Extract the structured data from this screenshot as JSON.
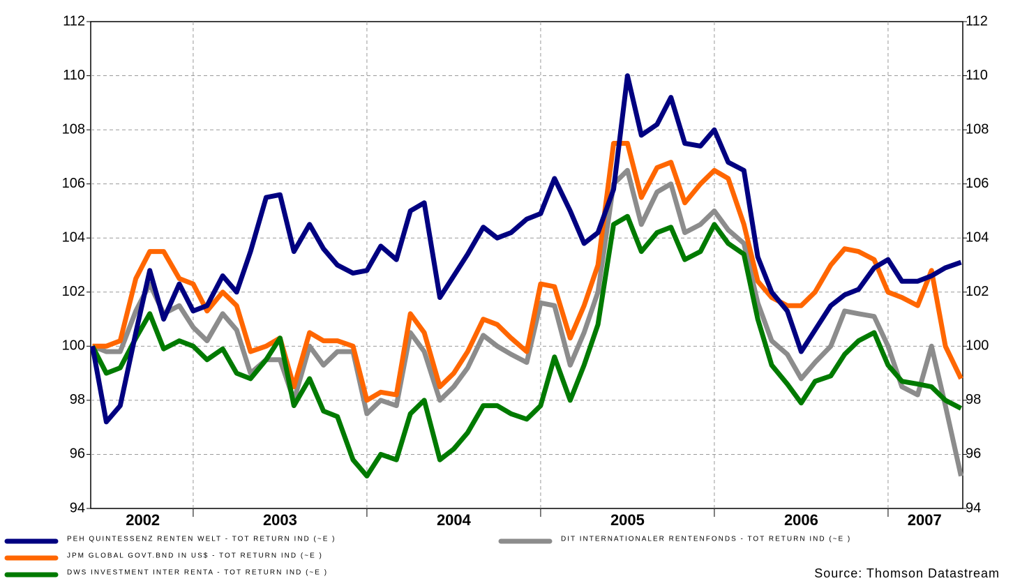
{
  "chart_data": {
    "type": "line",
    "source": "Source: Thomson Datastream",
    "x": [
      2002.42,
      2002.5,
      2002.58,
      2002.67,
      2002.75,
      2002.83,
      2002.92,
      2003,
      2003.08,
      2003.17,
      2003.25,
      2003.33,
      2003.42,
      2003.5,
      2003.58,
      2003.67,
      2003.75,
      2003.83,
      2003.92,
      2004,
      2004.08,
      2004.17,
      2004.25,
      2004.33,
      2004.42,
      2004.5,
      2004.58,
      2004.67,
      2004.75,
      2004.83,
      2004.92,
      2005,
      2005.08,
      2005.17,
      2005.25,
      2005.33,
      2005.42,
      2005.5,
      2005.58,
      2005.67,
      2005.75,
      2005.83,
      2005.92,
      2006,
      2006.08,
      2006.17,
      2006.25,
      2006.33,
      2006.42,
      2006.5,
      2006.58,
      2006.67,
      2006.75,
      2006.83,
      2006.92,
      2007,
      2007.08,
      2007.17,
      2007.25,
      2007.33,
      2007.42
    ],
    "series": [
      {
        "name": "PEH QUINTESSENZ RENTEN WELT - TOT RETURN IND (~E )",
        "color": "#000080",
        "values": [
          100,
          97.2,
          97.8,
          100.5,
          102.8,
          101,
          102.3,
          101.3,
          101.5,
          102.6,
          102,
          103.5,
          105.5,
          105.6,
          103.5,
          104.5,
          103.6,
          103,
          102.7,
          102.8,
          103.7,
          103.2,
          105,
          105.3,
          101.8,
          102.6,
          103.4,
          104.4,
          104,
          104.2,
          104.7,
          104.9,
          106.2,
          105,
          103.8,
          104.2,
          105.8,
          110,
          107.8,
          108.2,
          109.2,
          107.5,
          107.4,
          108,
          106.8,
          106.5,
          103.3,
          102,
          101.3,
          99.8,
          100.6,
          101.5,
          101.9,
          102.1,
          102.9,
          103.2,
          102.4,
          102.4,
          102.6,
          102.9,
          103.1
        ]
      },
      {
        "name": "JPM GLOBAL GOVT.BND IN US$ - TOT RETURN IND (~E )",
        "color": "#ff6600",
        "values": [
          100,
          100,
          100.2,
          102.5,
          103.5,
          103.5,
          102.5,
          102.3,
          101.3,
          102,
          101.5,
          99.8,
          100,
          100.3,
          98.5,
          100.5,
          100.2,
          100.2,
          100,
          98,
          98.3,
          98.2,
          101.2,
          100.5,
          98.5,
          99,
          99.8,
          101,
          100.8,
          100.3,
          99.8,
          102.3,
          102.2,
          100.3,
          101.5,
          103,
          107.5,
          107.5,
          105.5,
          106.6,
          106.8,
          105.3,
          106,
          106.5,
          106.2,
          104.5,
          102.4,
          101.8,
          101.5,
          101.5,
          102,
          103,
          103.6,
          103.5,
          103.2,
          102,
          101.8,
          101.5,
          102.8,
          100,
          98.8
        ]
      },
      {
        "name": "DWS INVESTMENT INTER RENTA - TOT RETURN IND (~E )",
        "color": "#007a00",
        "values": [
          100,
          99,
          99.2,
          100.3,
          101.2,
          99.9,
          100.2,
          100,
          99.5,
          99.9,
          99,
          98.8,
          99.5,
          100.3,
          97.8,
          98.8,
          97.6,
          97.4,
          95.8,
          95.2,
          96,
          95.8,
          97.5,
          98,
          95.8,
          96.2,
          96.8,
          97.8,
          97.8,
          97.5,
          97.3,
          97.8,
          99.6,
          98,
          99.3,
          100.8,
          104.5,
          104.8,
          103.5,
          104.2,
          104.4,
          103.2,
          103.5,
          104.5,
          103.8,
          103.4,
          101,
          99.3,
          98.6,
          97.9,
          98.7,
          98.9,
          99.7,
          100.2,
          100.5,
          99.3,
          98.7,
          98.6,
          98.5,
          98,
          97.7
        ]
      },
      {
        "name": "DIT INTERNATIONALER RENTENFONDS - TOT RETURN IND (~E )",
        "color": "#8c8c8c",
        "values": [
          100,
          99.8,
          99.8,
          101.3,
          102.3,
          101.2,
          101.5,
          100.7,
          100.2,
          101.2,
          100.6,
          99,
          99.5,
          99.5,
          98,
          100,
          99.3,
          99.8,
          99.8,
          97.5,
          98,
          97.8,
          100.5,
          99.8,
          98,
          98.5,
          99.2,
          100.4,
          100,
          99.7,
          99.4,
          101.6,
          101.5,
          99.3,
          100.5,
          102,
          106,
          106.5,
          104.5,
          105.7,
          106,
          104.2,
          104.5,
          105,
          104.3,
          103.8,
          101.6,
          100.2,
          99.7,
          98.8,
          99.4,
          100,
          101.3,
          101.2,
          101.1,
          100,
          98.5,
          98.2,
          100,
          97.8,
          95.2
        ]
      }
    ],
    "xlim": [
      2002.41,
      2007.43
    ],
    "xgrid": [
      2003,
      2004,
      2005,
      2006,
      2007
    ],
    "xticks": [
      {
        "value": 2002.71,
        "label": "2002"
      },
      {
        "value": 2003.5,
        "label": "2003"
      },
      {
        "value": 2004.5,
        "label": "2004"
      },
      {
        "value": 2005.5,
        "label": "2005"
      },
      {
        "value": 2006.5,
        "label": "2006"
      },
      {
        "value": 2007.21,
        "label": "2007"
      }
    ],
    "ylim": [
      94,
      112
    ],
    "yticks": [
      94,
      96,
      98,
      100,
      102,
      104,
      106,
      108,
      110,
      112
    ],
    "grid": true
  }
}
